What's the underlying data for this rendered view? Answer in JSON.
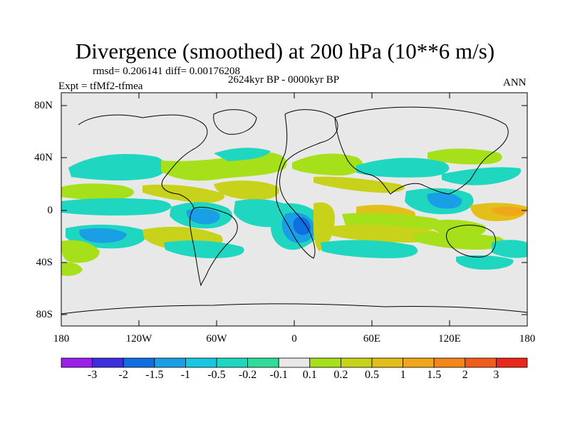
{
  "title": "Divergence (smoothed) at 200 hPa (10**6 m/s)",
  "stats_line": "rmsd= 0.206141 diff= 0.00176208",
  "period_label": "2624kyr BP - 0000kyr BP",
  "experiment_label": "Expt = tfMf2-tfmea",
  "season_label": "ANN",
  "axes": {
    "lat_ticks": [
      "80N",
      "40N",
      "0",
      "40S",
      "80S"
    ],
    "lon_ticks": [
      "180",
      "120W",
      "60W",
      "0",
      "60E",
      "120E",
      "180"
    ]
  },
  "colorbar": {
    "labels": [
      "-3",
      "-2",
      "-1.5",
      "-1",
      "-0.5",
      "-0.2",
      "-0.1",
      "0.1",
      "0.2",
      "0.5",
      "1",
      "1.5",
      "2",
      "3"
    ],
    "colors": [
      "#9b1fe8",
      "#3d2ee0",
      "#0f6fe0",
      "#1a9fe6",
      "#19c7e0",
      "#1fd6c0",
      "#2fdc9a",
      "#e8e8e8",
      "#a6e01a",
      "#c8d21a",
      "#e2bf1a",
      "#f0a81a",
      "#f4861a",
      "#f25c1a",
      "#e8281a"
    ]
  },
  "map_colors": {
    "background": "#e8e8e8",
    "coast": "#000000"
  }
}
